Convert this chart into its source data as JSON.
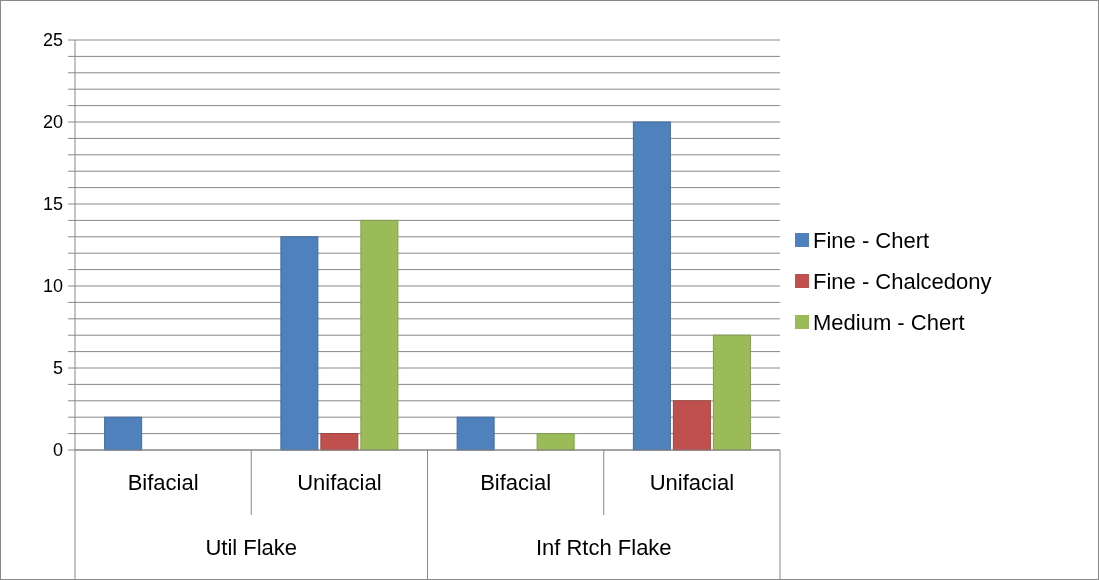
{
  "chart_data": {
    "type": "bar",
    "categories": [
      "Bifacial",
      "Unifacial",
      "Bifacial",
      "Unifacial"
    ],
    "annotations": [
      "Util Flake",
      "Inf Rtch Flake"
    ],
    "series": [
      {
        "name": "Fine - Chert",
        "color": "#4f81bd",
        "values": [
          2,
          13,
          2,
          20
        ]
      },
      {
        "name": "Fine - Chalcedony",
        "color": "#c0504d",
        "values": [
          null,
          1,
          null,
          3
        ]
      },
      {
        "name": "Medium - Chert",
        "color": "#9bbb59",
        "values": [
          null,
          14,
          1,
          7
        ]
      }
    ],
    "ylim": [
      0,
      25
    ],
    "yticks": [
      0,
      {
        "value": 1,
        "label": null
      },
      {
        "value": 2,
        "label": null
      },
      {
        "value": 3,
        "label": null
      },
      {
        "value": 4,
        "label": null
      },
      5,
      {
        "value": 6,
        "label": null
      },
      {
        "value": 7,
        "label": null
      },
      {
        "value": 8,
        "label": null
      },
      {
        "value": 9,
        "label": null
      },
      10,
      {
        "value": 11,
        "label": null
      },
      {
        "value": 12,
        "label": null
      },
      {
        "value": 13,
        "label": null
      },
      {
        "value": 14,
        "label": null
      },
      15,
      {
        "value": 16,
        "label": null
      },
      {
        "value": 17,
        "label": null
      },
      {
        "value": 18,
        "label": null
      },
      {
        "value": 19,
        "label": null
      },
      20,
      {
        "value": 21,
        "label": null
      },
      {
        "value": 22,
        "label": null
      },
      {
        "value": 23,
        "label": null
      },
      {
        "value": 24,
        "label": null
      },
      25
    ],
    "grid": true,
    "legend": "right"
  }
}
